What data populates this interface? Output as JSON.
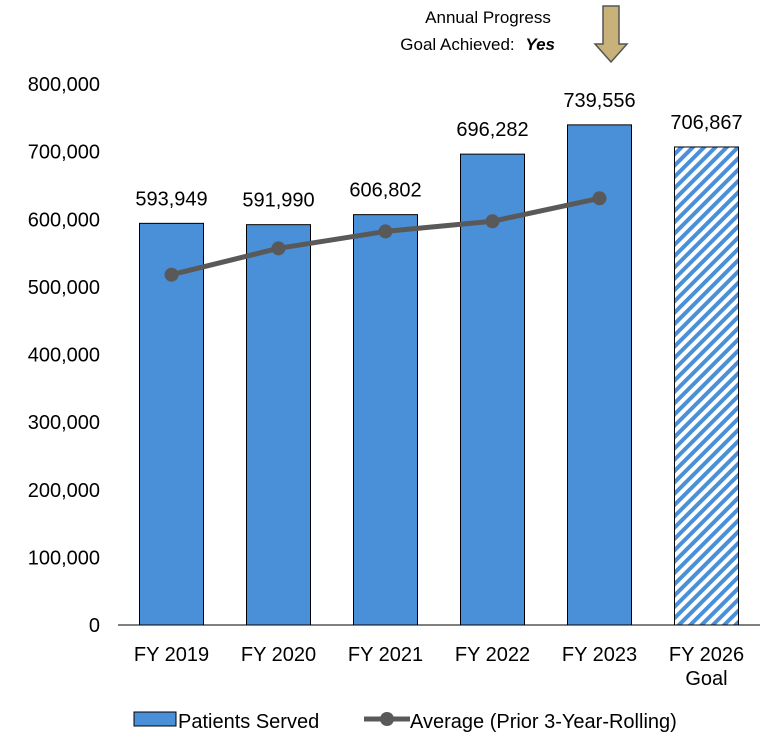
{
  "chart_data": {
    "type": "bar",
    "categories": [
      "FY 2019",
      "FY 2020",
      "FY 2021",
      "FY 2022",
      "FY 2023",
      "FY 2026 Goal"
    ],
    "ylim": [
      0,
      800000
    ],
    "y_ticks": [
      0,
      100000,
      200000,
      300000,
      400000,
      500000,
      600000,
      700000,
      800000
    ],
    "y_tick_labels": [
      "0",
      "100,000",
      "200,000",
      "300,000",
      "400,000",
      "500,000",
      "600,000",
      "700,000",
      "800,000"
    ],
    "grid": false,
    "legend_position": "bottom",
    "series": [
      {
        "name": "Patients Served",
        "type": "bar",
        "color": "#4a90d9",
        "values": [
          593949,
          591990,
          606802,
          696282,
          739556,
          706867
        ],
        "labels": [
          "593,949",
          "591,990",
          "606,802",
          "696,282",
          "739,556",
          "706,867"
        ],
        "goal_index": 5,
        "goal_pattern": "diagonal-hatch"
      },
      {
        "name": "Average (Prior 3-Year-Rolling)",
        "type": "line",
        "color": "#595959",
        "values": [
          518000,
          557000,
          582000,
          597000,
          631000,
          null
        ]
      }
    ],
    "annotation": {
      "line1": "Annual Progress",
      "line2_prefix": "Goal Achieved:",
      "line2_value": "Yes",
      "arrow_color": "#c8b27a",
      "target_category": "FY 2023"
    }
  }
}
